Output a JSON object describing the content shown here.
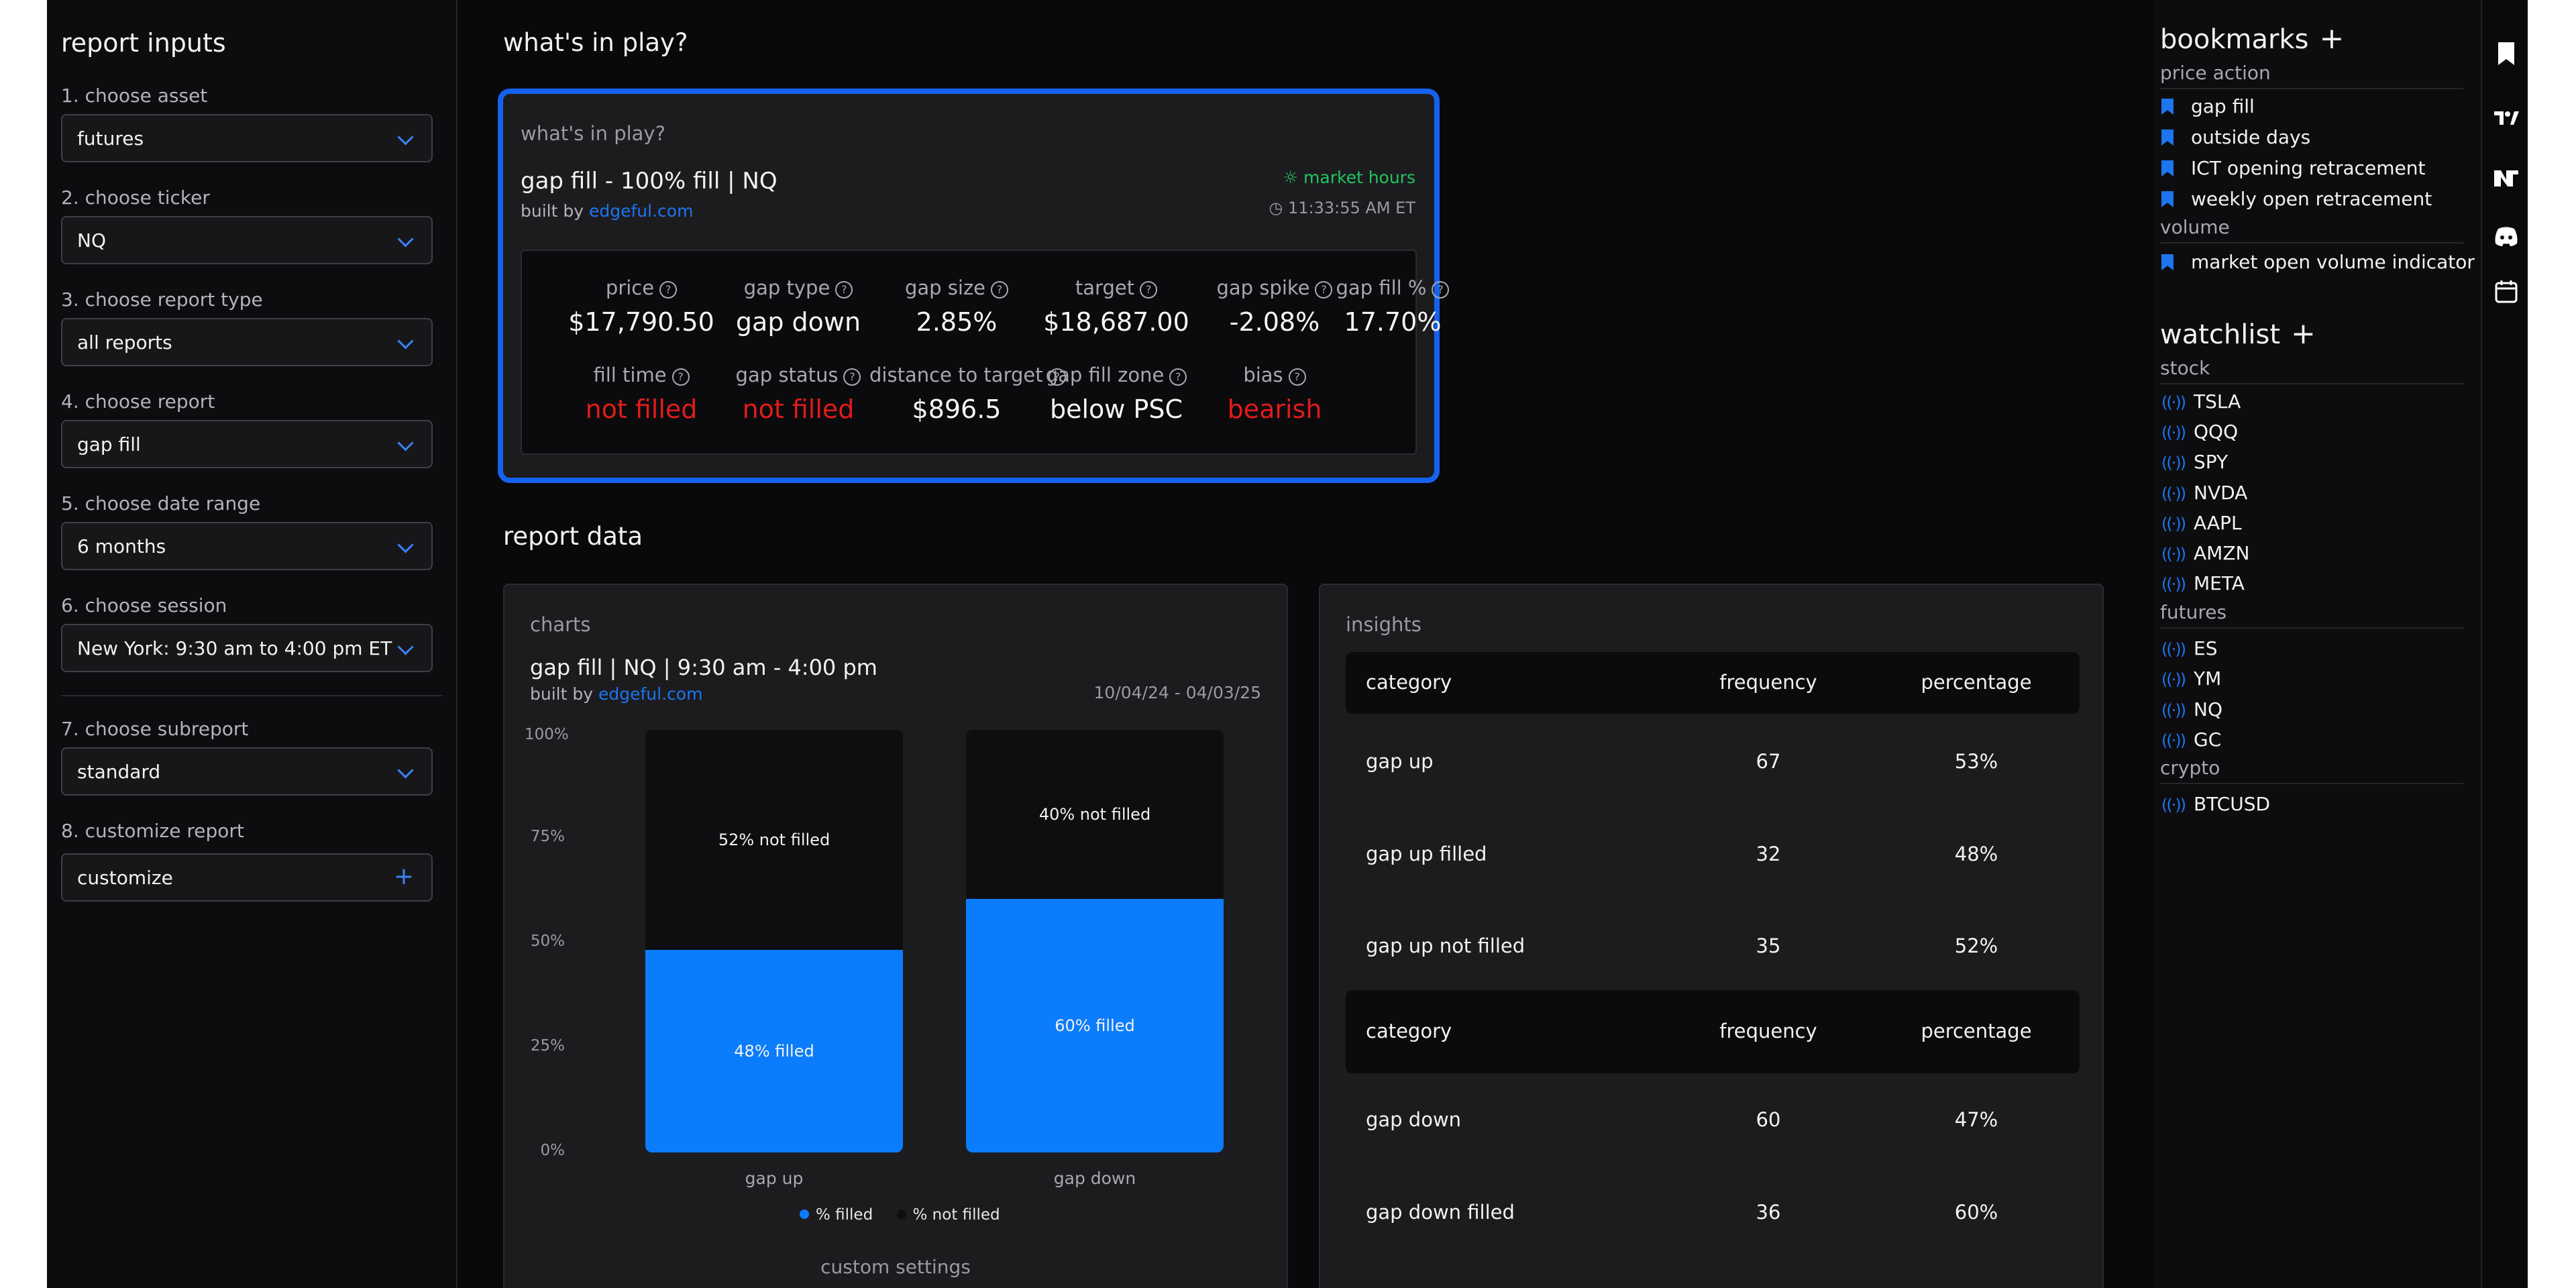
{
  "left": {
    "title": "report inputs",
    "fields": [
      {
        "label": "1. choose asset",
        "value": "futures",
        "kind": "select"
      },
      {
        "label": "2. choose ticker",
        "value": "NQ",
        "kind": "select"
      },
      {
        "label": "3. choose report type",
        "value": "all reports",
        "kind": "select"
      },
      {
        "label": "4. choose report",
        "value": "gap fill",
        "kind": "select"
      },
      {
        "label": "5. choose date range",
        "value": "6 months",
        "kind": "select"
      },
      {
        "label": "6. choose session",
        "value": "New York: 9:30 am to 4:00 pm ET",
        "kind": "select"
      },
      {
        "label": "7. choose subreport",
        "value": "standard",
        "kind": "select"
      },
      {
        "label": "8. customize report",
        "value": "customize",
        "kind": "button"
      }
    ]
  },
  "play": {
    "heading": "what's in play?",
    "card_sub": "what's in play?",
    "report_title": "gap fill - 100% fill | NQ",
    "built_by": "built by",
    "built_link": "edgeful.com",
    "market_status": "market hours",
    "time": "11:33:55 AM ET",
    "stats": [
      {
        "label": "price",
        "value": "$17,790.50",
        "color": "normal"
      },
      {
        "label": "gap type",
        "value": "gap down",
        "color": "normal"
      },
      {
        "label": "gap size",
        "value": "2.85%",
        "color": "normal"
      },
      {
        "label": "target",
        "value": "$18,687.00",
        "color": "normal"
      },
      {
        "label": "gap spike",
        "value": "-2.08%",
        "color": "normal"
      },
      {
        "label": "gap fill %",
        "value": "17.70%",
        "color": "normal"
      },
      {
        "label": "fill time",
        "value": "not filled",
        "color": "red"
      },
      {
        "label": "gap status",
        "value": "not filled",
        "color": "red"
      },
      {
        "label": "distance to target",
        "value": "$896.5",
        "color": "normal"
      },
      {
        "label": "gap fill zone",
        "value": "below PSC",
        "color": "normal"
      },
      {
        "label": "bias",
        "value": "bearish",
        "color": "red"
      }
    ]
  },
  "report": {
    "heading": "report data",
    "charts_sub": "charts",
    "chart_title": "gap fill | NQ | 9:30 am - 4:00 pm",
    "built_by": "built by",
    "built_link": "edgeful.com",
    "date_range": "10/04/24 - 04/03/25",
    "custom_settings": "custom settings",
    "insights_sub": "insights"
  },
  "chart_data": {
    "type": "bar",
    "stacked": true,
    "categories": [
      "gap up",
      "gap down"
    ],
    "series": [
      {
        "name": "% filled",
        "values": [
          48,
          60
        ],
        "color": "#0b7cfb",
        "labels": [
          "48% filled",
          "60% filled"
        ]
      },
      {
        "name": "% not filled",
        "values": [
          52,
          40
        ],
        "color": "#0e0e11",
        "labels": [
          "52% not filled",
          "40% not filled"
        ]
      }
    ],
    "y_ticks": [
      "100%",
      "75%",
      "50%",
      "25%",
      "0%"
    ],
    "ylim": [
      0,
      100
    ],
    "legend": "bottom-center"
  },
  "insights": {
    "headers": [
      "category",
      "frequency",
      "percentage"
    ],
    "group1": [
      [
        "gap up",
        "67",
        "53%"
      ],
      [
        "gap up filled",
        "32",
        "48%"
      ],
      [
        "gap up not filled",
        "35",
        "52%"
      ]
    ],
    "group2": [
      [
        "gap down",
        "60",
        "47%"
      ],
      [
        "gap down filled",
        "36",
        "60%"
      ]
    ]
  },
  "right": {
    "bookmarks_title": "bookmarks",
    "plus": "+",
    "bookmark_sections": [
      {
        "name": "price action",
        "items": [
          "gap fill",
          "outside days",
          "ICT opening retracement",
          "weekly open retracement"
        ]
      },
      {
        "name": "volume",
        "items": [
          "market open volume indicator"
        ]
      }
    ],
    "watchlist_title": "watchlist",
    "watch_sections": [
      {
        "name": "stock",
        "items": [
          "TSLA",
          "QQQ",
          "SPY",
          "NVDA",
          "AAPL",
          "AMZN",
          "META"
        ]
      },
      {
        "name": "futures",
        "items": [
          "ES",
          "YM",
          "NQ",
          "GC"
        ]
      },
      {
        "name": "crypto",
        "items": [
          "BTCUSD"
        ]
      }
    ]
  },
  "rail": [
    "bookmark-icon",
    "tradingview-icon",
    "ninjatrader-icon",
    "discord-icon",
    "calendar-icon"
  ]
}
